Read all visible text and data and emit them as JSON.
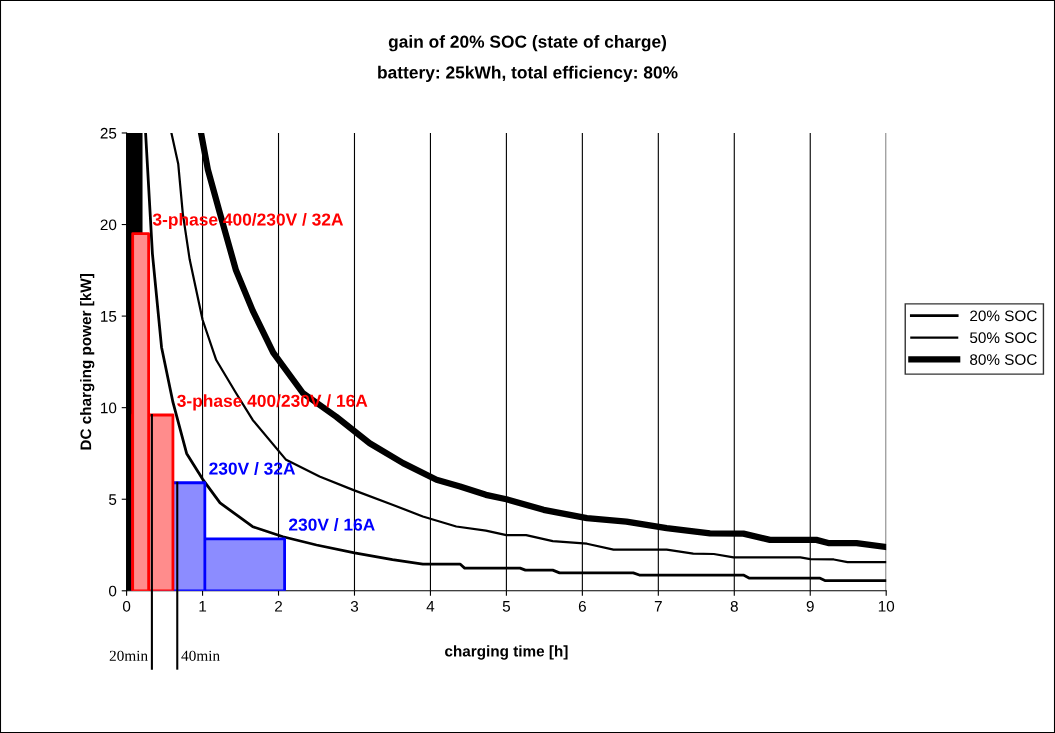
{
  "chart_data": {
    "type": "line",
    "title": "gain of 20% SOC (state of charge)",
    "subtitle": "battery: 25kWh, total efficiency: 80%",
    "xlabel": "charging time [h]",
    "ylabel": "DC charging power [kW]",
    "xlim": [
      0,
      10
    ],
    "xticks": [
      0,
      1,
      2,
      3,
      4,
      5,
      6,
      7,
      8,
      9,
      10
    ],
    "ylim": [
      0,
      25
    ],
    "yticks": [
      0,
      5,
      10,
      15,
      20,
      25
    ],
    "grid": "x",
    "legend": "right",
    "series": [
      {
        "name": "20% SOC",
        "color": "#000000",
        "x": [
          0.25,
          0.34,
          0.46,
          0.61,
          0.79,
          1.0,
          1.23,
          1.66,
          2.06,
          2.5,
          3.0,
          3.5,
          3.9,
          4.39,
          4.45,
          5.18,
          5.25,
          5.61,
          5.7,
          6.67,
          6.75,
          8.12,
          8.2,
          9.13,
          9.2,
          10
        ],
        "values": [
          25,
          18.4,
          13.3,
          10.3,
          7.5,
          6.1,
          4.8,
          3.5,
          2.95,
          2.5,
          2.07,
          1.7,
          1.46,
          1.46,
          1.24,
          1.24,
          1.13,
          1.13,
          0.98,
          0.98,
          0.86,
          0.86,
          0.69,
          0.69,
          0.55,
          0.55
        ]
      },
      {
        "name": "50% SOC",
        "color": "#000000",
        "x": [
          0.59,
          0.68,
          0.74,
          0.83,
          1.0,
          1.18,
          1.44,
          1.66,
          2.1,
          2.54,
          2.98,
          3.5,
          3.9,
          4.34,
          4.73,
          5.0,
          5.26,
          5.61,
          6.06,
          6.41,
          7.11,
          7.46,
          7.73,
          7.99,
          8.87,
          9.0,
          9.31,
          9.49,
          10
        ],
        "values": [
          25,
          23.3,
          20.6,
          18.1,
          14.8,
          12.6,
          10.8,
          9.33,
          7.15,
          6.24,
          5.51,
          4.7,
          4.06,
          3.51,
          3.29,
          3.04,
          3.04,
          2.71,
          2.57,
          2.25,
          2.25,
          2.03,
          2.01,
          1.82,
          1.82,
          1.73,
          1.71,
          1.57,
          1.57
        ]
      },
      {
        "name": "80% SOC",
        "color": "#000000",
        "x": [
          0.98,
          1.07,
          1.23,
          1.44,
          1.66,
          1.93,
          2.32,
          2.76,
          3.2,
          3.64,
          4.08,
          4.39,
          4.73,
          5.0,
          5.49,
          6.06,
          6.58,
          7.11,
          7.68,
          8.12,
          8.47,
          9.08,
          9.25,
          9.61,
          10
        ],
        "values": [
          25,
          23.0,
          20.6,
          17.5,
          15.3,
          13.0,
          10.8,
          9.5,
          8.06,
          6.97,
          6.06,
          5.7,
          5.24,
          5.0,
          4.42,
          3.97,
          3.78,
          3.42,
          3.14,
          3.12,
          2.78,
          2.78,
          2.6,
          2.6,
          2.39
        ]
      },
      {
        "type": "area",
        "name": "230V / 16A",
        "color": "#0000ff",
        "x": [
          0.08,
          2.08
        ],
        "values": [
          2.84,
          2.84
        ]
      },
      {
        "type": "area",
        "name": "230V / 32A",
        "color": "#0000ff",
        "x": [
          0.08,
          1.03
        ],
        "values": [
          5.9,
          5.9
        ]
      },
      {
        "type": "area",
        "name": "3-phase 400/230V / 16A",
        "color": "#ff0000",
        "x": [
          0.08,
          0.61
        ],
        "values": [
          9.6,
          9.6
        ]
      },
      {
        "type": "area",
        "name": "3-phase 400/230V / 32A",
        "color": "#ff0000",
        "x": [
          0.08,
          0.29
        ],
        "values": [
          19.5,
          19.5
        ]
      }
    ],
    "ref_lines": [
      {
        "axis": "x",
        "value": 0.1,
        "color": "#000000"
      },
      {
        "axis": "x",
        "value": 0.333,
        "label": "20min",
        "color": "#000000"
      },
      {
        "axis": "x",
        "value": 0.667,
        "label": "40min",
        "color": "#000000"
      }
    ]
  }
}
